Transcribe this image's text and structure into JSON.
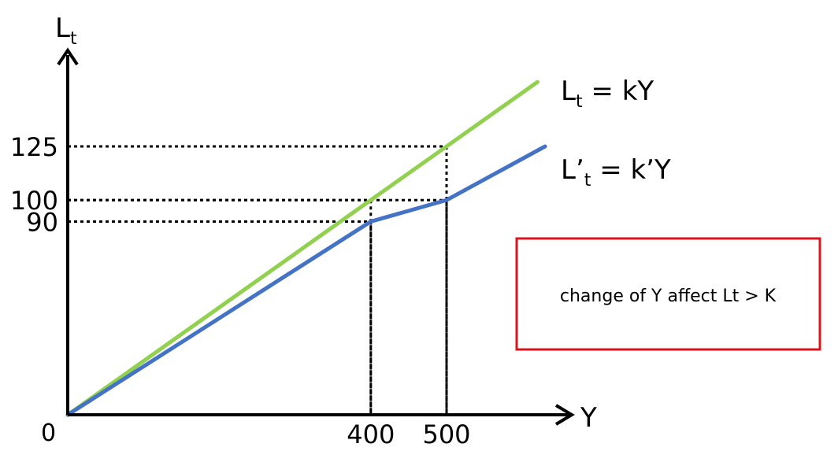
{
  "chart_data": {
    "type": "line",
    "ylabel": {
      "main": "L",
      "sub": "t"
    },
    "xlabel": "Y",
    "origin_label": "0",
    "xlim": [
      0,
      650
    ],
    "ylim": [
      0,
      160
    ],
    "grid": false,
    "x_ticks": [
      400,
      500
    ],
    "y_ticks": [
      90,
      100,
      125
    ],
    "series": [
      {
        "label": {
          "pre": "L",
          "sub": "t",
          "post": " = kY"
        },
        "color": "#92d050",
        "points": [
          [
            0,
            0
          ],
          [
            400,
            100
          ],
          [
            500,
            125
          ],
          [
            620,
            155
          ]
        ]
      },
      {
        "label": {
          "pre": "L’",
          "sub": "t",
          "post": " = k’Y"
        },
        "color": "#4472c4",
        "points": [
          [
            0,
            0
          ],
          [
            400,
            90
          ],
          [
            500,
            100
          ],
          [
            630,
            125
          ]
        ]
      }
    ],
    "guides": [
      {
        "x": 400,
        "y": 100
      },
      {
        "x": 400,
        "y": 90
      },
      {
        "x": 500,
        "y": 125
      },
      {
        "x": 500,
        "y": 100
      }
    ],
    "annotation": {
      "text": "change of Y affect Lt > K",
      "color": "#d9141b"
    }
  }
}
